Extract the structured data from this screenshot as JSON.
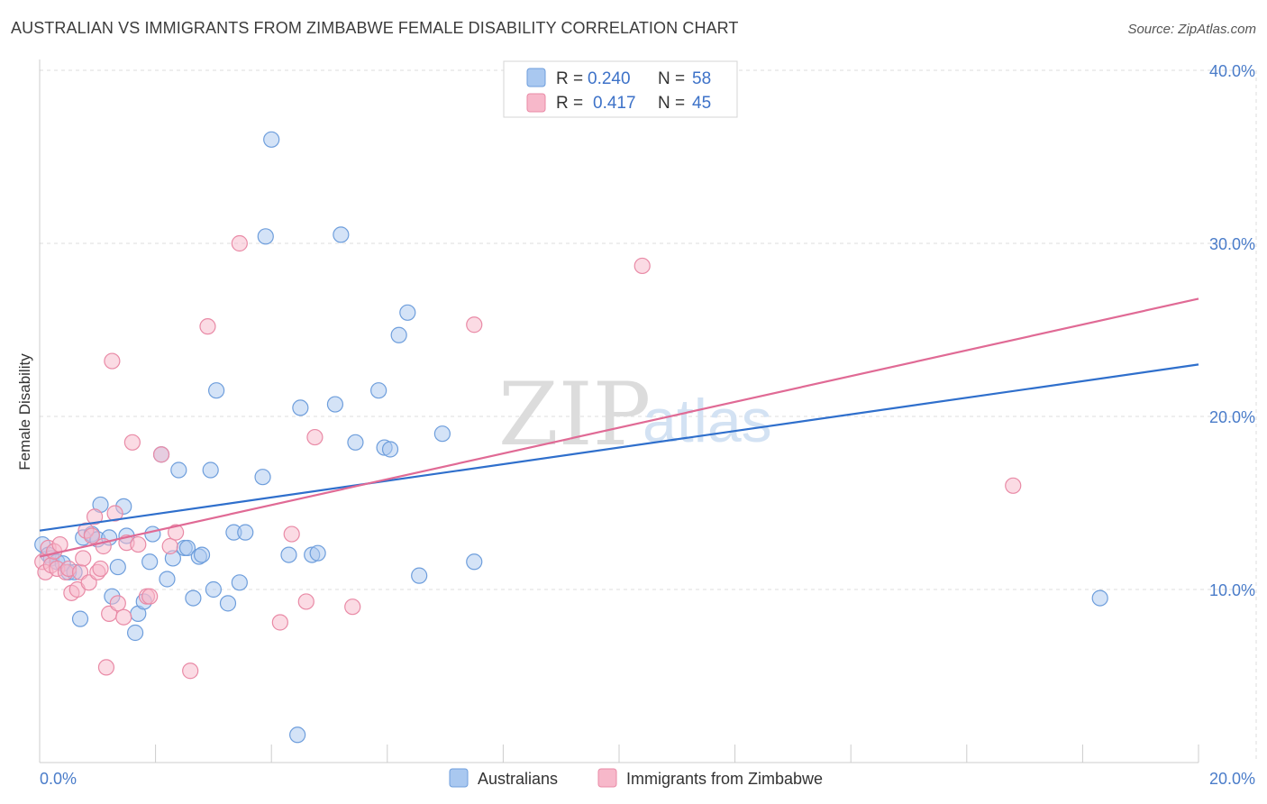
{
  "header": {
    "title": "AUSTRALIAN VS IMMIGRANTS FROM ZIMBABWE FEMALE DISABILITY CORRELATION CHART",
    "source": "Source: ZipAtlas.com"
  },
  "watermark": {
    "zip": "ZIP",
    "atlas": "atlas"
  },
  "stats": [
    {
      "r_label": "R =",
      "r_value": "0.240",
      "n_label": "N =",
      "n_value": "58"
    },
    {
      "r_label": "R =",
      "r_value": "0.417",
      "n_label": "N =",
      "n_value": "45"
    }
  ],
  "colors": {
    "australians_fill": "#a9c8f0",
    "australians_stroke": "#6e9edc",
    "australians_line": "#2f6fcc",
    "zimbabwe_fill": "#f7b8ca",
    "zimbabwe_stroke": "#e98aa6",
    "zimbabwe_line": "#e06a95",
    "tick_text": "#4a7cc9",
    "grid": "#dddddd"
  },
  "chart_data": {
    "type": "scatter",
    "title": "AUSTRALIAN VS IMMIGRANTS FROM ZIMBABWE FEMALE DISABILITY CORRELATION CHART",
    "xlabel": "",
    "ylabel": "Female Disability",
    "xlim": [
      0,
      20
    ],
    "ylim": [
      0,
      40
    ],
    "x_tick_labels": [
      "0.0%",
      "20.0%"
    ],
    "y_ticks": [
      10,
      20,
      30,
      40
    ],
    "y_tick_labels": [
      "10.0%",
      "20.0%",
      "30.0%",
      "40.0%"
    ],
    "grid": true,
    "legend_position": "bottom",
    "series": [
      {
        "name": "Australians",
        "r": 0.24,
        "n": 58,
        "trend": [
          [
            0,
            13.4
          ],
          [
            20,
            23.0
          ]
        ],
        "points": [
          [
            0.05,
            12.6
          ],
          [
            0.15,
            12.0
          ],
          [
            0.2,
            11.8
          ],
          [
            0.3,
            11.6
          ],
          [
            0.4,
            11.5
          ],
          [
            0.5,
            11.0
          ],
          [
            0.6,
            11.0
          ],
          [
            0.7,
            8.3
          ],
          [
            0.75,
            13.0
          ],
          [
            0.9,
            13.2
          ],
          [
            1.0,
            12.9
          ],
          [
            1.05,
            14.9
          ],
          [
            1.2,
            13.0
          ],
          [
            1.25,
            9.6
          ],
          [
            1.35,
            11.3
          ],
          [
            1.45,
            14.8
          ],
          [
            1.5,
            13.1
          ],
          [
            1.65,
            7.5
          ],
          [
            1.7,
            8.6
          ],
          [
            1.8,
            9.3
          ],
          [
            1.9,
            11.6
          ],
          [
            1.95,
            13.2
          ],
          [
            2.1,
            17.8
          ],
          [
            2.2,
            10.6
          ],
          [
            2.3,
            11.8
          ],
          [
            2.4,
            16.9
          ],
          [
            2.5,
            12.4
          ],
          [
            2.55,
            12.4
          ],
          [
            2.65,
            9.5
          ],
          [
            2.75,
            11.9
          ],
          [
            2.8,
            12.0
          ],
          [
            2.95,
            16.9
          ],
          [
            3.0,
            10.0
          ],
          [
            3.05,
            21.5
          ],
          [
            3.25,
            9.2
          ],
          [
            3.35,
            13.3
          ],
          [
            3.45,
            10.4
          ],
          [
            3.55,
            13.3
          ],
          [
            3.85,
            16.5
          ],
          [
            3.9,
            30.4
          ],
          [
            4.0,
            36.0
          ],
          [
            4.3,
            12.0
          ],
          [
            4.45,
            1.6
          ],
          [
            4.5,
            20.5
          ],
          [
            4.7,
            12.0
          ],
          [
            4.8,
            12.1
          ],
          [
            5.1,
            20.7
          ],
          [
            5.2,
            30.5
          ],
          [
            5.45,
            18.5
          ],
          [
            5.85,
            21.5
          ],
          [
            5.95,
            18.2
          ],
          [
            6.05,
            18.1
          ],
          [
            6.2,
            24.7
          ],
          [
            6.35,
            26.0
          ],
          [
            6.55,
            10.8
          ],
          [
            6.95,
            19.0
          ],
          [
            7.5,
            11.6
          ],
          [
            18.3,
            9.5
          ]
        ]
      },
      {
        "name": "Immigrants from Zimbabwe",
        "r": 0.417,
        "n": 45,
        "trend": [
          [
            0,
            11.9
          ],
          [
            20,
            26.8
          ]
        ],
        "points": [
          [
            0.05,
            11.6
          ],
          [
            0.1,
            11.0
          ],
          [
            0.15,
            12.4
          ],
          [
            0.2,
            11.4
          ],
          [
            0.25,
            12.2
          ],
          [
            0.3,
            11.2
          ],
          [
            0.35,
            12.6
          ],
          [
            0.45,
            11.0
          ],
          [
            0.5,
            11.2
          ],
          [
            0.55,
            9.8
          ],
          [
            0.65,
            10.0
          ],
          [
            0.7,
            11.0
          ],
          [
            0.75,
            11.8
          ],
          [
            0.8,
            13.4
          ],
          [
            0.85,
            10.4
          ],
          [
            0.9,
            13.1
          ],
          [
            0.95,
            14.2
          ],
          [
            1.0,
            11.0
          ],
          [
            1.05,
            11.2
          ],
          [
            1.1,
            12.5
          ],
          [
            1.15,
            5.5
          ],
          [
            1.2,
            8.6
          ],
          [
            1.25,
            23.2
          ],
          [
            1.3,
            14.4
          ],
          [
            1.35,
            9.2
          ],
          [
            1.45,
            8.4
          ],
          [
            1.5,
            12.7
          ],
          [
            1.6,
            18.5
          ],
          [
            1.7,
            12.6
          ],
          [
            1.85,
            9.6
          ],
          [
            1.9,
            9.6
          ],
          [
            2.1,
            17.8
          ],
          [
            2.25,
            12.5
          ],
          [
            2.35,
            13.3
          ],
          [
            2.6,
            5.3
          ],
          [
            2.9,
            25.2
          ],
          [
            3.45,
            30.0
          ],
          [
            4.15,
            8.1
          ],
          [
            4.35,
            13.2
          ],
          [
            4.6,
            9.3
          ],
          [
            4.75,
            18.8
          ],
          [
            5.4,
            9.0
          ],
          [
            7.5,
            25.3
          ],
          [
            10.4,
            28.7
          ],
          [
            16.8,
            16.0
          ]
        ]
      }
    ]
  }
}
